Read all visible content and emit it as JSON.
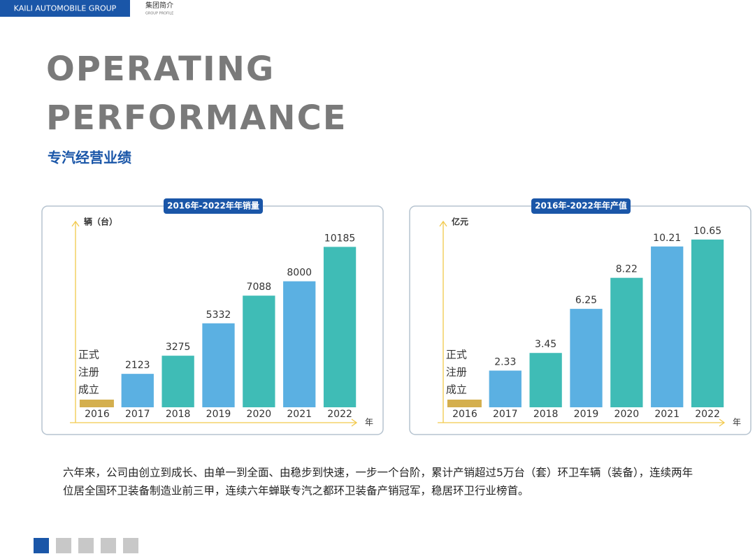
{
  "header": {
    "brand": "KAILI AUTOMOBILE GROUP",
    "section": "集团简介",
    "section_en": "GROUP PROFILE"
  },
  "title_lines": [
    "OPERATING",
    "PERFORMANCE"
  ],
  "subtitle": "专汽经营业绩",
  "chart_data": [
    {
      "type": "bar",
      "title": "2016年-2022年年销量",
      "y_label": "辆（台）",
      "x_label": "年",
      "annotation": [
        "正式",
        "注册",
        "成立"
      ],
      "categories": [
        "2016",
        "2017",
        "2018",
        "2019",
        "2020",
        "2021",
        "2022"
      ],
      "values": [
        null,
        2123,
        3275,
        5332,
        7088,
        8000,
        10185
      ],
      "colors": [
        "#d4af4e",
        "#5bb0e2",
        "#3fbcb6",
        "#5bb0e2",
        "#3fbcb6",
        "#5bb0e2",
        "#3fbcb6"
      ],
      "ylim": [
        0,
        11000
      ]
    },
    {
      "type": "bar",
      "title": "2016年-2022年年产值",
      "y_label": "亿元",
      "x_label": "年",
      "annotation": [
        "正式",
        "注册",
        "成立"
      ],
      "categories": [
        "2016",
        "2017",
        "2018",
        "2019",
        "2020",
        "2021",
        "2022"
      ],
      "values": [
        null,
        2.33,
        3.45,
        6.25,
        8.22,
        10.21,
        10.65
      ],
      "colors": [
        "#d4af4e",
        "#5bb0e2",
        "#3fbcb6",
        "#5bb0e2",
        "#3fbcb6",
        "#5bb0e2",
        "#3fbcb6"
      ],
      "ylim": [
        0,
        11
      ]
    }
  ],
  "paragraph": [
    "六年来，公司由创立到成长、由单一到全面、由稳步到快速，一步一个台阶，累计产销超过5万台（套）环卫车辆（装备），连续两年",
    "位居全国环卫装备制造业前三甲，连续六年蝉联专汽之都环卫装备产销冠军，稳居环卫行业榜首。"
  ]
}
